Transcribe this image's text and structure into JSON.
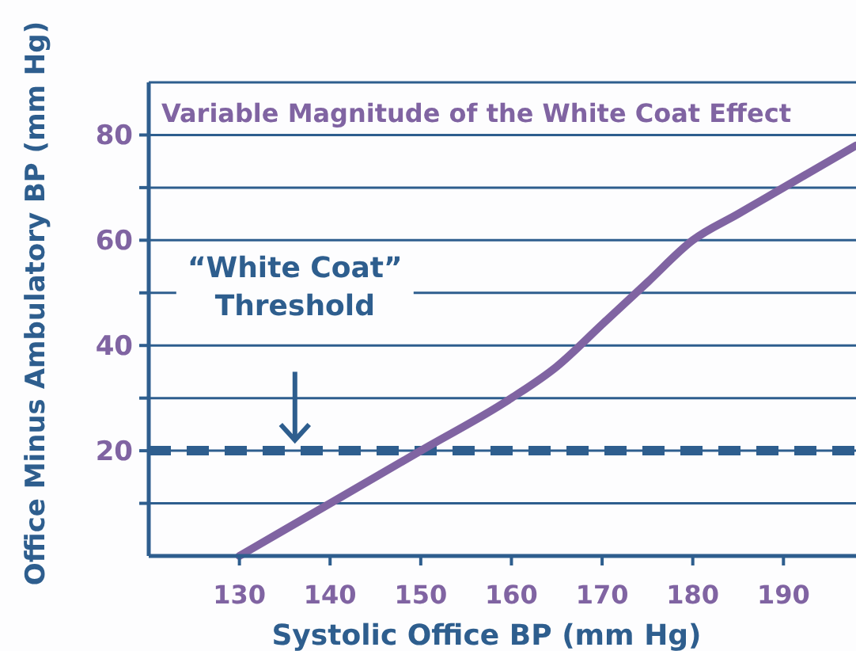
{
  "chart_data": {
    "type": "line",
    "title": "Variable Magnitude of the White Coat Effect",
    "xlabel": "Systolic Office BP (mm Hg)",
    "ylabel": "Office Minus Ambulatory BP (mm Hg)",
    "x": [
      130,
      140,
      150,
      160,
      165,
      170,
      175,
      180,
      185,
      190,
      198
    ],
    "series": [
      {
        "color": "#8064a2",
        "values": [
          0,
          10,
          20,
          30,
          36,
          44,
          52,
          60,
          65,
          70,
          78
        ]
      }
    ],
    "xlim": [
      120,
      198
    ],
    "xticks": [
      130,
      140,
      150,
      160,
      170,
      180,
      190
    ],
    "ylim": [
      0,
      90
    ],
    "yticks": [
      {
        "value": 10,
        "label": null
      },
      20,
      {
        "value": 30,
        "label": null
      },
      40,
      {
        "value": 50,
        "label": null
      },
      60,
      {
        "value": 70,
        "label": null
      },
      80
    ],
    "grid": "y",
    "marker": "none",
    "line_style": "solid",
    "ref_lines": [
      {
        "axis": "y",
        "value": 20,
        "label": "“White Coat” Threshold",
        "color": "#2e5e8e",
        "line_style": "dashed"
      }
    ]
  }
}
